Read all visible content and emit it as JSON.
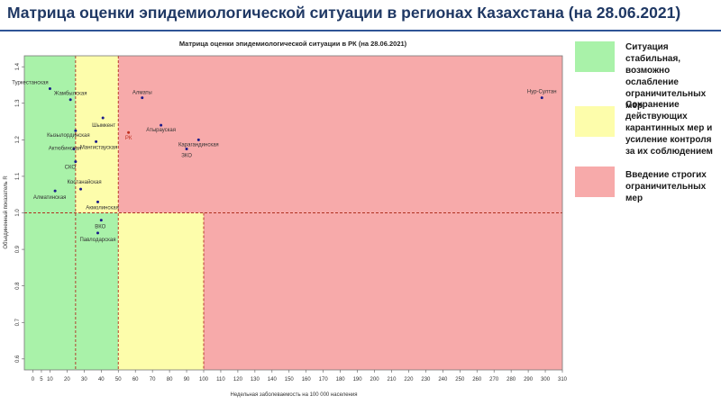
{
  "page": {
    "title": "Матрица оценки эпидемиологической ситуации в регионах Казахстана (на 28.06.2021)"
  },
  "legend": [
    {
      "color": "#a9f2a9",
      "text": "Ситуация стабильная, возможно ослабление ограничительных мер"
    },
    {
      "color": "#fdfdab",
      "text": "Сохранение действующих карантинных мер и усиление контроля за их соблюдением"
    },
    {
      "color": "#f7aaaa",
      "text": "Введение строгих ограничительных мер"
    }
  ],
  "chart_data": {
    "type": "scatter",
    "title": "Матрица оценки эпидемиологической ситуации в РК (на 28.06.2021)",
    "xlabel": "Недельная заболеваемость на 100 000 населения",
    "ylabel": "Объединенный показатель R",
    "xlim": [
      -5,
      310
    ],
    "ylim": [
      0.57,
      1.43
    ],
    "xticks": [
      0,
      5,
      10,
      20,
      30,
      40,
      50,
      60,
      70,
      80,
      90,
      100,
      110,
      120,
      130,
      140,
      150,
      160,
      170,
      180,
      190,
      200,
      210,
      220,
      230,
      240,
      250,
      260,
      270,
      280,
      290,
      300,
      310
    ],
    "yticks": [
      0.6,
      0.7,
      0.8,
      0.9,
      1.0,
      1.1,
      1.2,
      1.3,
      1.4
    ],
    "zones": [
      {
        "color": "#a9f2a9",
        "x": [
          -5,
          25
        ],
        "y": [
          0.57,
          1.43
        ]
      },
      {
        "color": "#a9f2a9",
        "x": [
          25,
          50
        ],
        "y": [
          0.57,
          1.0
        ]
      },
      {
        "color": "#fdfdab",
        "x": [
          25,
          50
        ],
        "y": [
          1.0,
          1.43
        ]
      },
      {
        "color": "#fdfdab",
        "x": [
          50,
          100
        ],
        "y": [
          0.57,
          1.0
        ]
      },
      {
        "color": "#f7aaaa",
        "x": [
          50,
          310
        ],
        "y": [
          1.0,
          1.43
        ]
      },
      {
        "color": "#f7aaaa",
        "x": [
          100,
          310
        ],
        "y": [
          0.57,
          1.0
        ]
      }
    ],
    "thresholds": {
      "x": [
        25,
        50,
        100
      ],
      "y": [
        1.0
      ],
      "line_color": "#b03020"
    },
    "points": [
      {
        "label": "Туркестанская",
        "x": 10,
        "y": 1.34,
        "color": "#1a1a8a"
      },
      {
        "label": "Жамбылская",
        "x": 22,
        "y": 1.31,
        "color": "#1a1a8a"
      },
      {
        "label": "Кызылординская",
        "x": 25,
        "y": 1.225,
        "color": "#1a1a8a"
      },
      {
        "label": "Мангистауская",
        "x": 37,
        "y": 1.195,
        "color": "#1a1a8a"
      },
      {
        "label": "Актюбинская",
        "x": 24,
        "y": 1.175,
        "color": "#1a1a8a"
      },
      {
        "label": "СКО",
        "x": 25,
        "y": 1.14,
        "color": "#1a1a8a"
      },
      {
        "label": "Шымкент",
        "x": 41,
        "y": 1.26,
        "color": "#1a1a8a"
      },
      {
        "label": "Костанайская",
        "x": 28,
        "y": 1.065,
        "color": "#1a1a8a"
      },
      {
        "label": "Алматинская",
        "x": 13,
        "y": 1.06,
        "color": "#1a1a8a"
      },
      {
        "label": "Акмолинская",
        "x": 38,
        "y": 1.03,
        "color": "#1a1a8a"
      },
      {
        "label": "ВКО",
        "x": 40,
        "y": 0.98,
        "color": "#1a1a8a"
      },
      {
        "label": "Павлодарская",
        "x": 38,
        "y": 0.945,
        "color": "#1a1a8a"
      },
      {
        "label": "Алматы",
        "x": 64,
        "y": 1.315,
        "color": "#1a1a8a"
      },
      {
        "label": "Атырауская",
        "x": 75,
        "y": 1.24,
        "color": "#1a1a8a"
      },
      {
        "label": "РК",
        "x": 56,
        "y": 1.22,
        "color": "#c03020"
      },
      {
        "label": "Карагандинская",
        "x": 97,
        "y": 1.2,
        "color": "#1a1a8a"
      },
      {
        "label": "ЗКО",
        "x": 90,
        "y": 1.175,
        "color": "#1a1a8a"
      },
      {
        "label": "Нур-Султан",
        "x": 298,
        "y": 1.315,
        "color": "#1a1a8a"
      }
    ]
  }
}
